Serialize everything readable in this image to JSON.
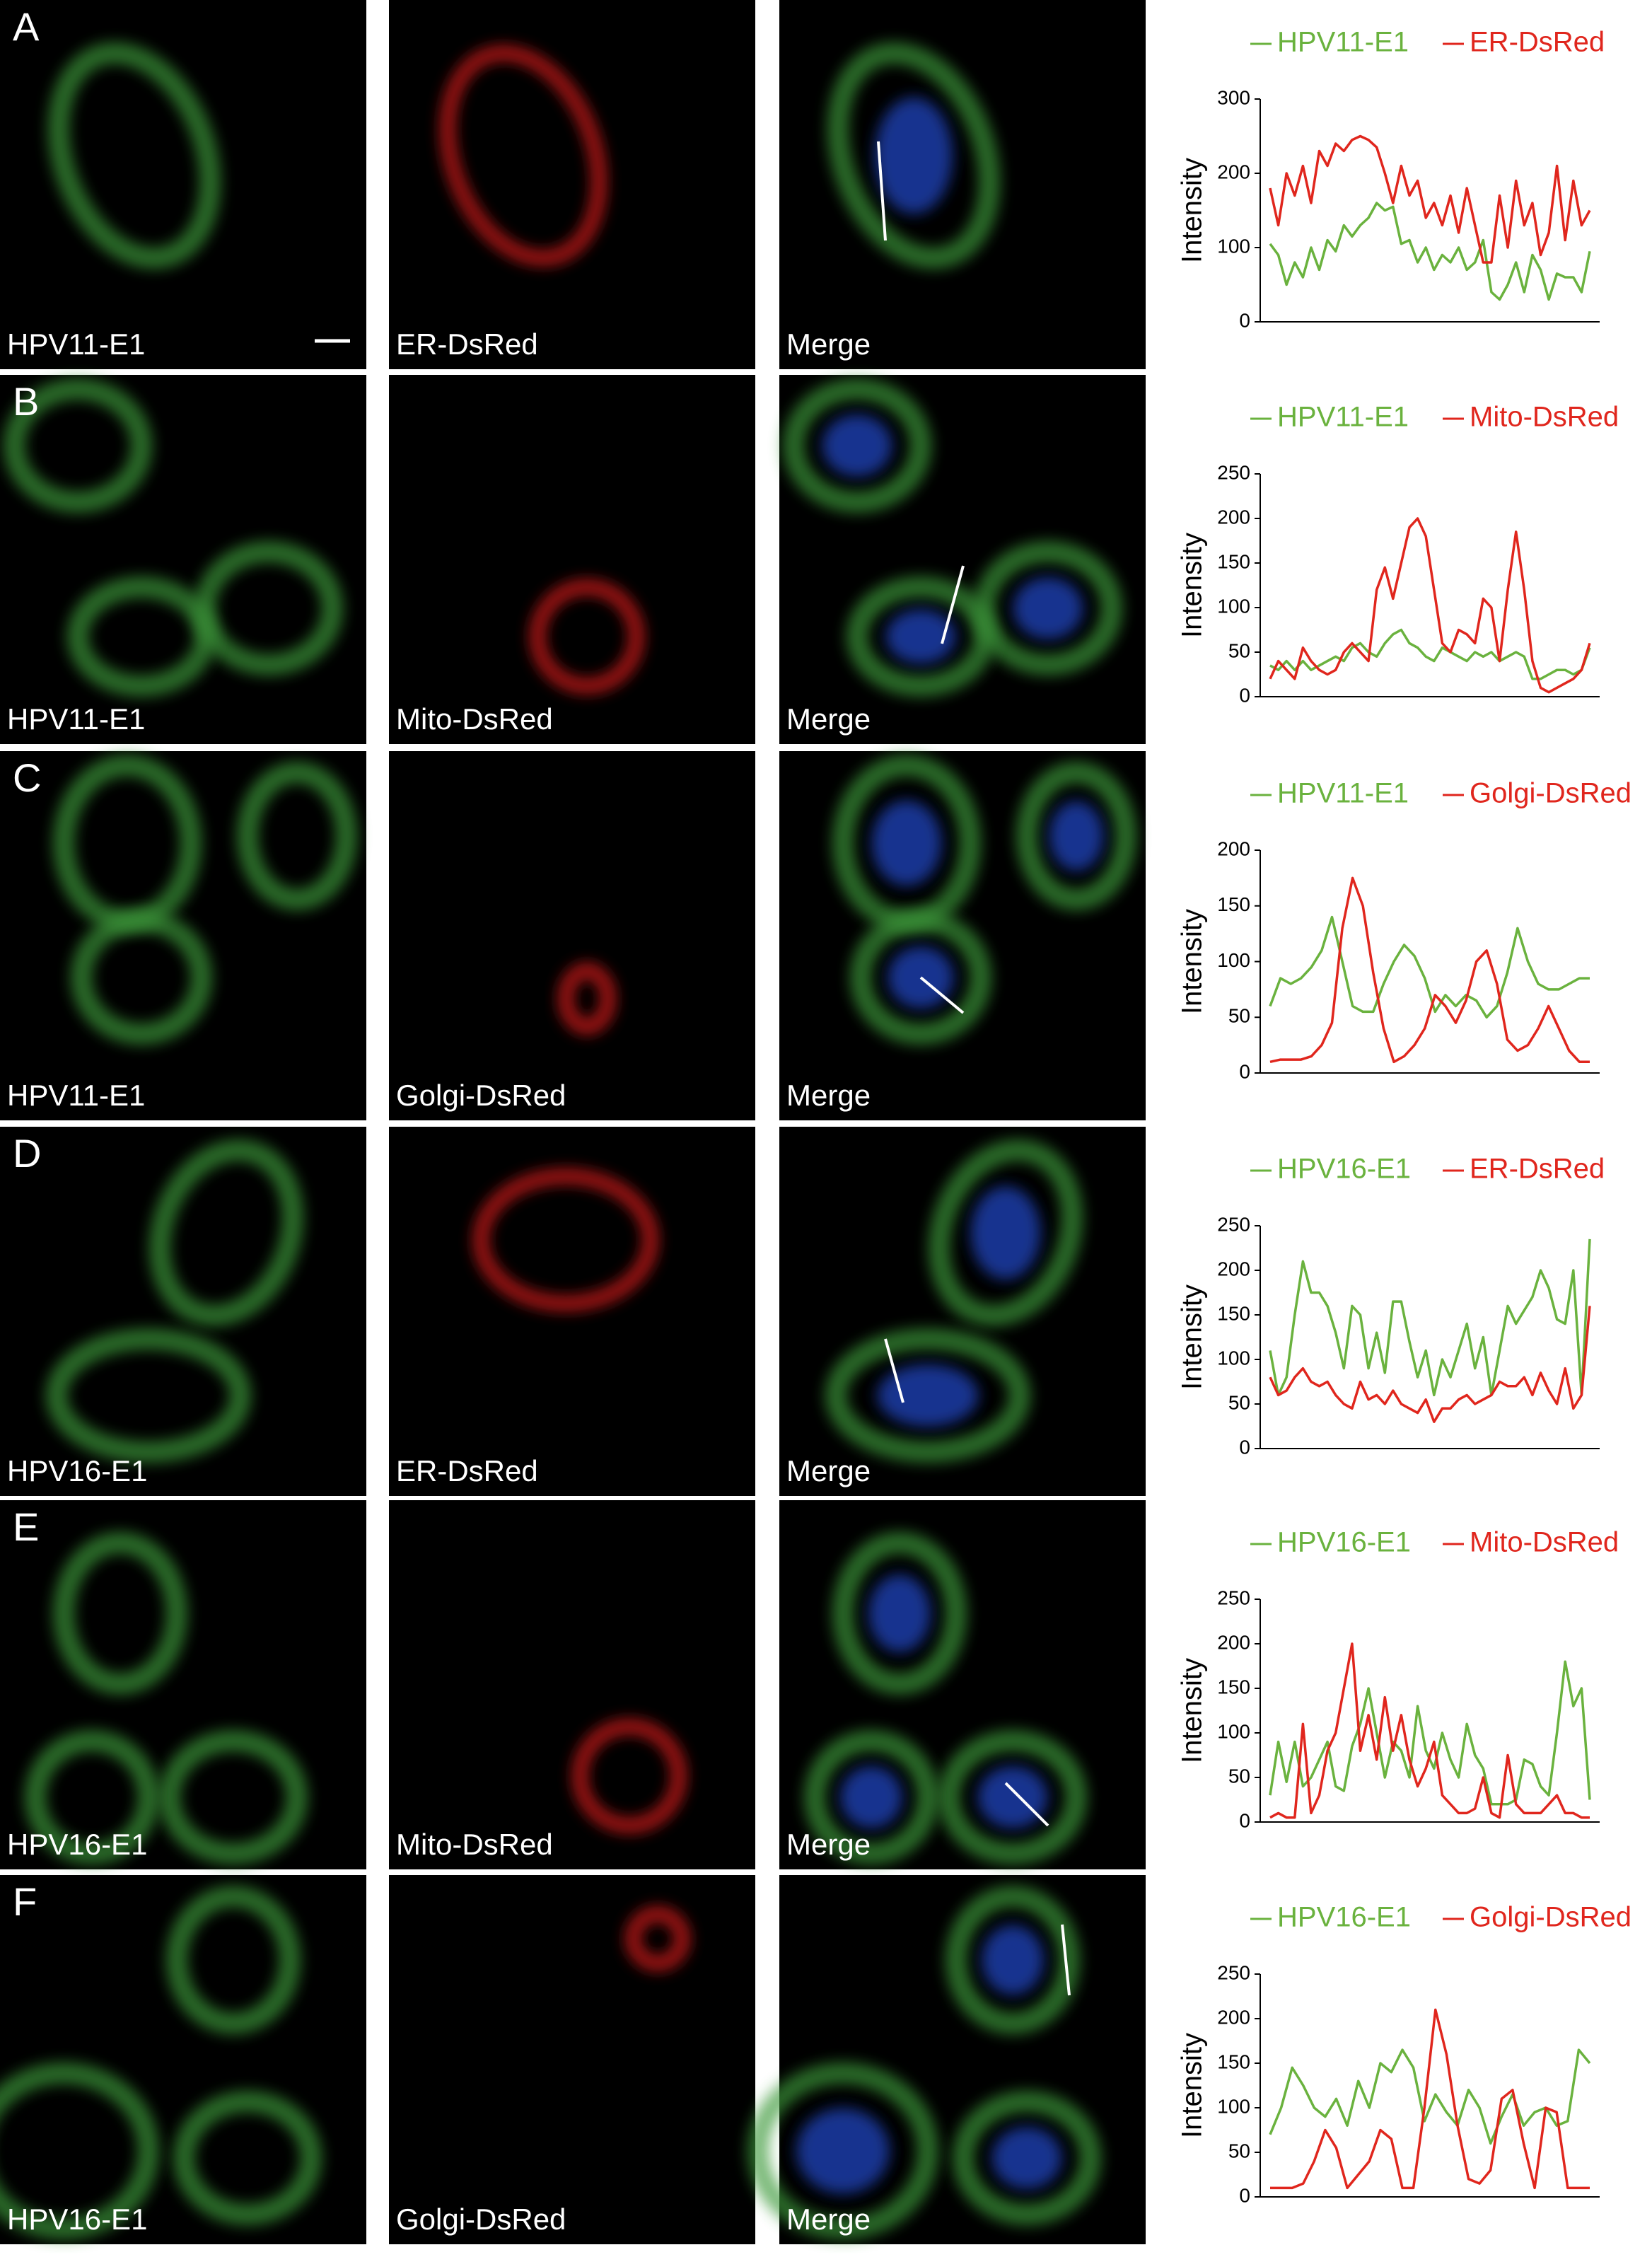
{
  "panels": [
    {
      "letter": "A",
      "labels": [
        "HPV11-E1",
        "ER-DsRed",
        "Merge"
      ]
    },
    {
      "letter": "B",
      "labels": [
        "HPV11-E1",
        "Mito-DsRed",
        "Merge"
      ]
    },
    {
      "letter": "C",
      "labels": [
        "HPV11-E1",
        "Golgi-DsRed",
        "Merge"
      ]
    },
    {
      "letter": "D",
      "labels": [
        "HPV16-E1",
        "ER-DsRed",
        "Merge"
      ]
    },
    {
      "letter": "E",
      "labels": [
        "HPV16-E1",
        "Mito-DsRed",
        "Merge"
      ]
    },
    {
      "letter": "F",
      "labels": [
        "HPV16-E1",
        "Golgi-DsRed",
        "Merge"
      ]
    }
  ],
  "chart_data": [
    {
      "type": "line",
      "ylabel": "Intensity",
      "ylim": [
        0,
        300
      ],
      "yticks": [
        0,
        100,
        200,
        300
      ],
      "series": [
        {
          "name": "HPV11-E1",
          "color": "#6ab23e",
          "values": [
            105,
            90,
            50,
            80,
            60,
            100,
            70,
            110,
            95,
            130,
            115,
            130,
            140,
            160,
            150,
            155,
            105,
            110,
            80,
            100,
            70,
            90,
            80,
            100,
            70,
            80,
            110,
            40,
            30,
            50,
            80,
            40,
            90,
            70,
            30,
            65,
            60,
            60,
            40,
            95
          ]
        },
        {
          "name": "ER-DsRed",
          "color": "#e0261d",
          "values": [
            180,
            130,
            200,
            170,
            210,
            160,
            230,
            210,
            240,
            230,
            245,
            250,
            245,
            235,
            200,
            160,
            210,
            170,
            190,
            140,
            160,
            130,
            170,
            120,
            180,
            130,
            80,
            80,
            170,
            100,
            190,
            130,
            160,
            90,
            120,
            210,
            110,
            190,
            130,
            150
          ]
        }
      ]
    },
    {
      "type": "line",
      "ylabel": "Intensity",
      "ylim": [
        0,
        250
      ],
      "yticks": [
        0,
        50,
        100,
        150,
        200,
        250
      ],
      "series": [
        {
          "name": "HPV11-E1",
          "color": "#6ab23e",
          "values": [
            35,
            30,
            40,
            30,
            40,
            30,
            35,
            40,
            45,
            40,
            55,
            60,
            50,
            45,
            60,
            70,
            75,
            60,
            55,
            45,
            40,
            55,
            50,
            45,
            40,
            50,
            45,
            50,
            40,
            45,
            50,
            45,
            20,
            20,
            25,
            30,
            30,
            25,
            30,
            55
          ]
        },
        {
          "name": "Mito-DsRed",
          "color": "#e0261d",
          "values": [
            20,
            40,
            30,
            20,
            55,
            40,
            30,
            25,
            30,
            50,
            60,
            50,
            40,
            120,
            145,
            110,
            150,
            190,
            200,
            180,
            120,
            60,
            50,
            75,
            70,
            60,
            110,
            100,
            40,
            120,
            185,
            120,
            40,
            10,
            5,
            10,
            15,
            20,
            30,
            60
          ]
        }
      ]
    },
    {
      "type": "line",
      "ylabel": "Intensity",
      "ylim": [
        0,
        200
      ],
      "yticks": [
        0,
        50,
        100,
        150,
        200
      ],
      "series": [
        {
          "name": "HPV11-E1",
          "color": "#6ab23e",
          "values": [
            60,
            85,
            80,
            85,
            95,
            110,
            140,
            100,
            60,
            55,
            55,
            80,
            100,
            115,
            105,
            85,
            55,
            70,
            60,
            70,
            65,
            50,
            60,
            90,
            130,
            100,
            80,
            75,
            75,
            80,
            85,
            85
          ]
        },
        {
          "name": "Golgi-DsRed",
          "color": "#e0261d",
          "values": [
            10,
            12,
            12,
            12,
            15,
            25,
            45,
            130,
            175,
            150,
            90,
            40,
            10,
            15,
            25,
            40,
            70,
            60,
            45,
            65,
            100,
            110,
            80,
            30,
            20,
            25,
            40,
            60,
            40,
            20,
            10,
            10
          ]
        }
      ]
    },
    {
      "type": "line",
      "ylabel": "Intensity",
      "ylim": [
        0,
        250
      ],
      "yticks": [
        0,
        50,
        100,
        150,
        200,
        250
      ],
      "series": [
        {
          "name": "HPV16-E1",
          "color": "#6ab23e",
          "values": [
            110,
            60,
            80,
            150,
            210,
            175,
            175,
            160,
            130,
            90,
            160,
            150,
            90,
            130,
            85,
            165,
            165,
            120,
            80,
            110,
            60,
            100,
            80,
            110,
            140,
            90,
            125,
            60,
            110,
            160,
            140,
            155,
            170,
            200,
            180,
            145,
            140,
            200,
            60,
            235
          ]
        },
        {
          "name": "ER-DsRed",
          "color": "#e0261d",
          "values": [
            80,
            60,
            65,
            80,
            90,
            75,
            70,
            75,
            60,
            50,
            45,
            75,
            55,
            60,
            50,
            65,
            50,
            45,
            40,
            55,
            30,
            45,
            45,
            55,
            60,
            50,
            55,
            60,
            75,
            70,
            70,
            80,
            60,
            85,
            65,
            50,
            90,
            45,
            60,
            160
          ]
        }
      ]
    },
    {
      "type": "line",
      "ylabel": "Intensity",
      "ylim": [
        0,
        250
      ],
      "yticks": [
        0,
        50,
        100,
        150,
        200,
        250
      ],
      "series": [
        {
          "name": "HPV16-E1",
          "color": "#6ab23e",
          "values": [
            30,
            90,
            45,
            90,
            40,
            50,
            70,
            90,
            40,
            35,
            85,
            110,
            150,
            100,
            50,
            90,
            80,
            50,
            130,
            80,
            60,
            100,
            70,
            50,
            110,
            75,
            60,
            20,
            20,
            20,
            25,
            70,
            65,
            40,
            30,
            100,
            180,
            130,
            150,
            25
          ]
        },
        {
          "name": "Mito-DsRed",
          "color": "#e0261d",
          "values": [
            5,
            10,
            5,
            5,
            110,
            10,
            30,
            80,
            100,
            150,
            200,
            80,
            120,
            70,
            140,
            80,
            120,
            70,
            40,
            60,
            90,
            30,
            20,
            10,
            10,
            15,
            50,
            10,
            5,
            75,
            20,
            10,
            10,
            10,
            20,
            30,
            10,
            10,
            5,
            5
          ]
        }
      ]
    },
    {
      "type": "line",
      "ylabel": "Intensity",
      "ylim": [
        0,
        250
      ],
      "yticks": [
        0,
        50,
        100,
        150,
        200,
        250
      ],
      "series": [
        {
          "name": "HPV16-E1",
          "color": "#6ab23e",
          "values": [
            70,
            100,
            145,
            125,
            100,
            90,
            110,
            80,
            130,
            100,
            150,
            140,
            165,
            145,
            85,
            115,
            95,
            80,
            120,
            100,
            60,
            90,
            115,
            80,
            95,
            100,
            80,
            85,
            165,
            150
          ]
        },
        {
          "name": "Golgi-DsRed",
          "color": "#e0261d",
          "values": [
            10,
            10,
            10,
            15,
            40,
            75,
            55,
            10,
            25,
            40,
            75,
            65,
            10,
            10,
            100,
            210,
            160,
            80,
            20,
            15,
            30,
            110,
            120,
            60,
            10,
            100,
            95,
            10,
            10,
            10
          ]
        }
      ]
    }
  ]
}
